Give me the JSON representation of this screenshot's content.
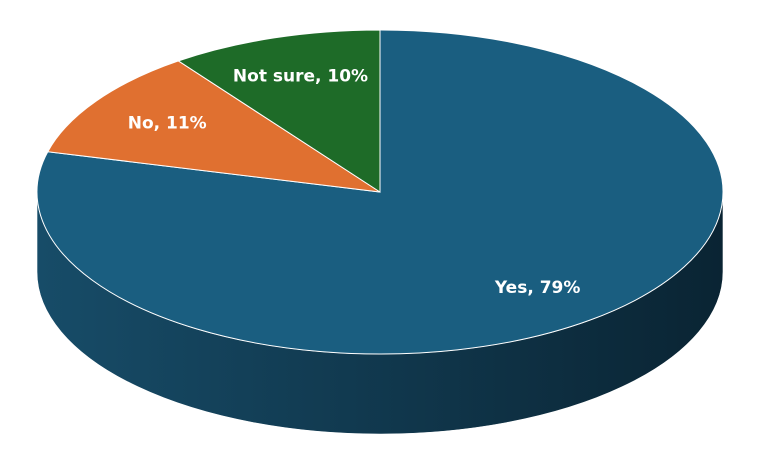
{
  "chart_data": {
    "type": "pie",
    "values": [
      79,
      11,
      10
    ],
    "value_labels": [
      "Yes, 79%",
      "No, 11%",
      "Not sure, 10%"
    ],
    "colors": [
      "#1a5e80",
      "#e07030",
      "#1e6b28"
    ]
  }
}
